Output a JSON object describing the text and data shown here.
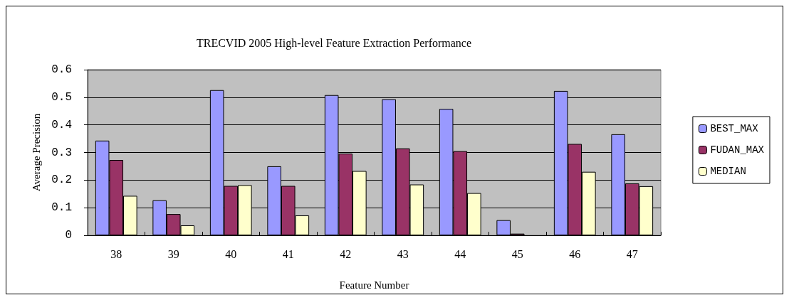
{
  "chart_data": {
    "type": "bar",
    "title": "TRECVID 2005 High-level Feature Extraction Performance",
    "xlabel": "Feature Number",
    "ylabel": "Average Precision",
    "categories": [
      "38",
      "39",
      "40",
      "41",
      "42",
      "43",
      "44",
      "45",
      "46",
      "47"
    ],
    "series": [
      {
        "name": "BEST_MAX",
        "color": "#9999ff",
        "values": [
          0.343,
          0.127,
          0.526,
          0.25,
          0.508,
          0.493,
          0.458,
          0.055,
          0.523,
          0.366
        ]
      },
      {
        "name": "FUDAN_MAX",
        "color": "#993366",
        "values": [
          0.273,
          0.077,
          0.179,
          0.179,
          0.296,
          0.315,
          0.305,
          0.006,
          0.331,
          0.188
        ]
      },
      {
        "name": "MEDIAN",
        "color": "#ffffcc",
        "values": [
          0.143,
          0.036,
          0.182,
          0.072,
          0.233,
          0.184,
          0.153,
          null,
          0.23,
          0.178
        ]
      }
    ],
    "ylim": [
      0,
      0.6
    ],
    "yticks": [
      0,
      0.1,
      0.2,
      0.3,
      0.4,
      0.5,
      0.6
    ],
    "grid": "y",
    "legend": "right"
  }
}
